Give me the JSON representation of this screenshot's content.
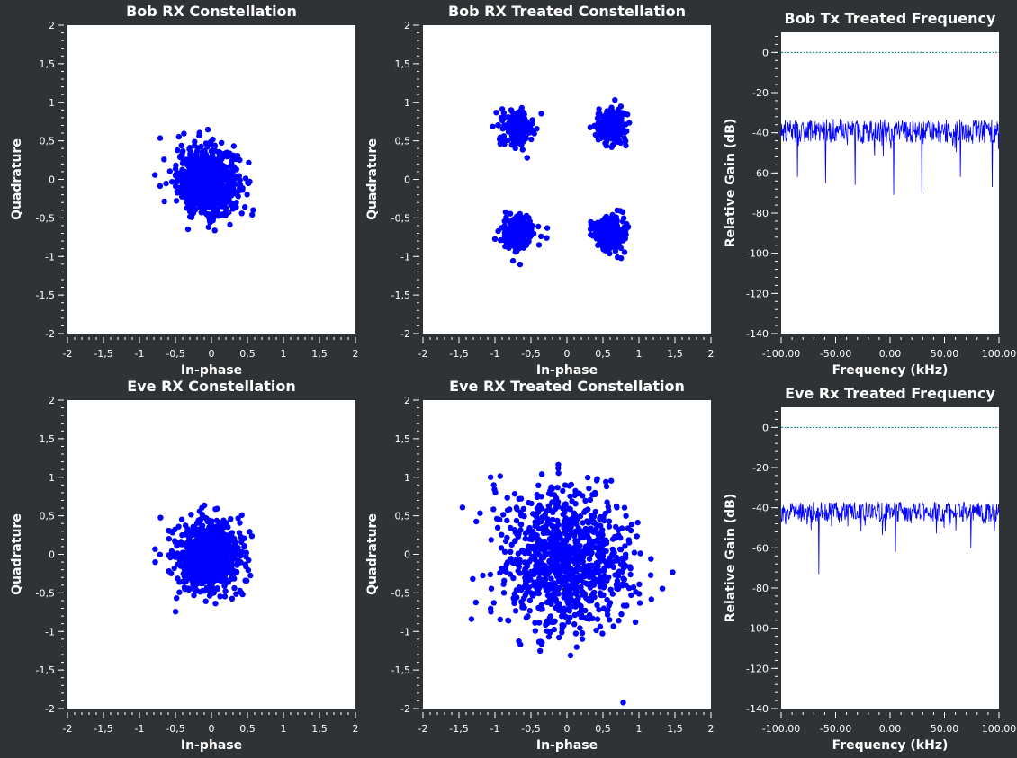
{
  "colors": {
    "background": "#2f3335",
    "plot_background": "#ffffff",
    "points": "#0000ff",
    "spectrum": "#0000ff",
    "reference_line": "#008080",
    "text": "#ffffff"
  },
  "chart_data": [
    {
      "id": "bob-rx-constellation",
      "type": "scatter",
      "title": "Bob RX Constellation",
      "xlabel": "In-phase",
      "ylabel": "Quadrature",
      "xlim": [
        -2,
        2
      ],
      "ylim": [
        -2,
        2
      ],
      "xticks": [
        "-2",
        "-1,5",
        "-1",
        "-0,5",
        "0",
        "0,5",
        "1",
        "1,5",
        "2"
      ],
      "yticks": [
        "2",
        "1,5",
        "1",
        "0,5",
        "0",
        "-0,5",
        "-1",
        "-1,5",
        "-2"
      ],
      "grid": false,
      "clusters": [
        {
          "cx": -0.05,
          "cy": -0.02,
          "sigma": 0.21,
          "count": 900
        }
      ]
    },
    {
      "id": "bob-rx-treated-constellation",
      "type": "scatter",
      "title": "Bob RX Treated Constellation",
      "xlabel": "In-phase",
      "ylabel": "Quadrature",
      "xlim": [
        -2,
        2
      ],
      "ylim": [
        -2,
        2
      ],
      "xticks": [
        "-2",
        "-1,5",
        "-1",
        "-0,5",
        "0",
        "0,5",
        "1",
        "1,5",
        "2"
      ],
      "yticks": [
        "2",
        "1,5",
        "1",
        "0,5",
        "0",
        "-0,5",
        "-1",
        "-1,5",
        "-2"
      ],
      "grid": false,
      "clusters": [
        {
          "cx": -0.69,
          "cy": 0.67,
          "sigma": 0.11,
          "count": 220
        },
        {
          "cx": 0.6,
          "cy": 0.67,
          "sigma": 0.11,
          "count": 220
        },
        {
          "cx": -0.69,
          "cy": -0.7,
          "sigma": 0.11,
          "count": 220
        },
        {
          "cx": 0.6,
          "cy": -0.7,
          "sigma": 0.11,
          "count": 220
        }
      ]
    },
    {
      "id": "bob-tx-treated-frequency",
      "type": "line",
      "title": "Bob Tx Treated Frequency",
      "xlabel": "Frequency (kHz)",
      "ylabel": "Relative Gain (dB)",
      "xlim": [
        -100,
        100
      ],
      "ylim": [
        -140,
        10
      ],
      "xticks": [
        "-100.00",
        "-50.00",
        "0.00",
        "50.00",
        "100.00"
      ],
      "xtick_values": [
        -100,
        -50,
        0,
        50,
        100
      ],
      "yticks": [
        "0",
        "-20",
        "-40",
        "-60",
        "-80",
        "-100",
        "-120",
        "-140"
      ],
      "ytick_values": [
        0,
        -20,
        -40,
        -60,
        -80,
        -100,
        -120,
        -140
      ],
      "reference_line_db": 0,
      "grid": false,
      "series": [
        {
          "mean_db": -39,
          "spread_db": 6,
          "deep_dips_db": [
            -62,
            -65,
            -66,
            -71,
            -70,
            -62,
            -67
          ]
        }
      ]
    },
    {
      "id": "eve-rx-constellation",
      "type": "scatter",
      "title": "Eve RX Constellation",
      "xlabel": "In-phase",
      "ylabel": "Quadrature",
      "xlim": [
        -2,
        2
      ],
      "ylim": [
        -2,
        2
      ],
      "xticks": [
        "-2",
        "-1,5",
        "-1",
        "-0,5",
        "0",
        "0,5",
        "1",
        "1,5",
        "2"
      ],
      "yticks": [
        "2",
        "1,5",
        "1",
        "0,5",
        "0",
        "-0,5",
        "-1",
        "-1,5",
        "-2"
      ],
      "grid": false,
      "clusters": [
        {
          "cx": -0.05,
          "cy": -0.02,
          "sigma": 0.23,
          "count": 900
        }
      ]
    },
    {
      "id": "eve-rx-treated-constellation",
      "type": "scatter",
      "title": "Eve RX Treated Constellation",
      "xlabel": "In-phase",
      "ylabel": "Quadrature",
      "xlim": [
        -2,
        2
      ],
      "ylim": [
        -2,
        2
      ],
      "xticks": [
        "-2",
        "-1,5",
        "-1",
        "-0,5",
        "0",
        "0,5",
        "1",
        "1,5",
        "2"
      ],
      "yticks": [
        "2",
        "1,5",
        "1",
        "0,5",
        "0",
        "-0,5",
        "-1",
        "-1,5",
        "-2"
      ],
      "grid": false,
      "clusters": [
        {
          "cx": -0.05,
          "cy": -0.05,
          "sigma": 0.45,
          "count": 1000
        }
      ]
    },
    {
      "id": "eve-rx-treated-frequency",
      "type": "line",
      "title": "Eve Rx Treated Frequency",
      "xlabel": "Frequency (kHz)",
      "ylabel": "Relative Gain (dB)",
      "xlim": [
        -100,
        100
      ],
      "ylim": [
        -140,
        10
      ],
      "xticks": [
        "-100.00",
        "-50.00",
        "0.00",
        "50.00",
        "100.00"
      ],
      "xtick_values": [
        -100,
        -50,
        0,
        50,
        100
      ],
      "yticks": [
        "0",
        "-20",
        "-40",
        "-60",
        "-80",
        "-100",
        "-120",
        "-140"
      ],
      "ytick_values": [
        0,
        -20,
        -40,
        -60,
        -80,
        -100,
        -120,
        -140
      ],
      "reference_line_db": 0,
      "grid": false,
      "series": [
        {
          "mean_db": -42,
          "spread_db": 5,
          "deep_dips_db": [
            -73,
            -62,
            -60
          ]
        }
      ]
    }
  ]
}
